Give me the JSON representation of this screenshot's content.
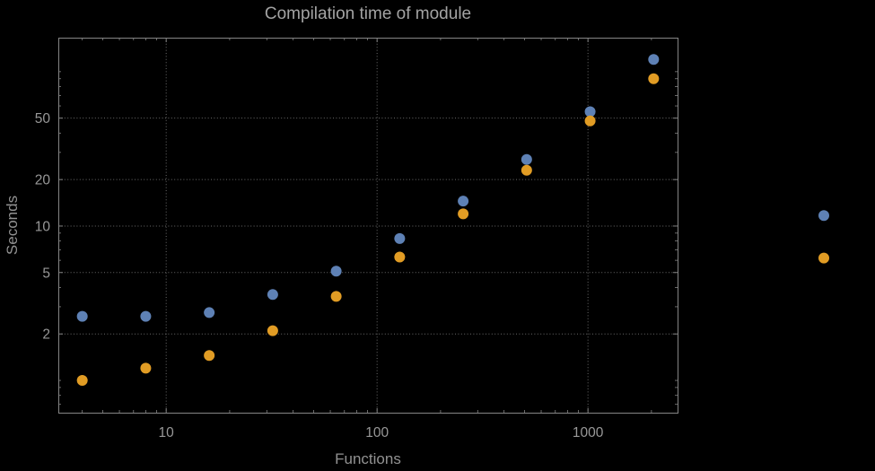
{
  "chart_data": {
    "type": "scatter",
    "title": "Compilation time of module",
    "xlabel": "Functions",
    "ylabel": "Seconds",
    "x_scale": "log",
    "y_scale": "log",
    "grid": true,
    "background": "#000000",
    "frame_color": "#858585",
    "grid_color": "#6b6b6b",
    "text_color": "#989898",
    "xlim": [
      3.08,
      2660
    ],
    "ylim": [
      0.618,
      166
    ],
    "x_ticks": [
      10,
      100,
      1000
    ],
    "y_ticks": [
      2,
      5,
      10,
      20,
      50
    ],
    "x": [
      4,
      8,
      16,
      32,
      64,
      128,
      256,
      512,
      1024,
      2048
    ],
    "series": [
      {
        "name": "blue",
        "color": "#5E81B5",
        "values": [
          2.6,
          2.6,
          2.75,
          3.6,
          5.1,
          8.3,
          14.5,
          27,
          55,
          120
        ]
      },
      {
        "name": "orange",
        "color": "#E19C24",
        "values": [
          1.0,
          1.2,
          1.45,
          2.1,
          3.5,
          6.3,
          12,
          23,
          48,
          90
        ]
      }
    ],
    "legend_markers": [
      {
        "name": "blue",
        "color": "#5E81B5",
        "y_value": 11.7
      },
      {
        "name": "orange",
        "color": "#E19C24",
        "y_value": 6.2
      }
    ]
  }
}
